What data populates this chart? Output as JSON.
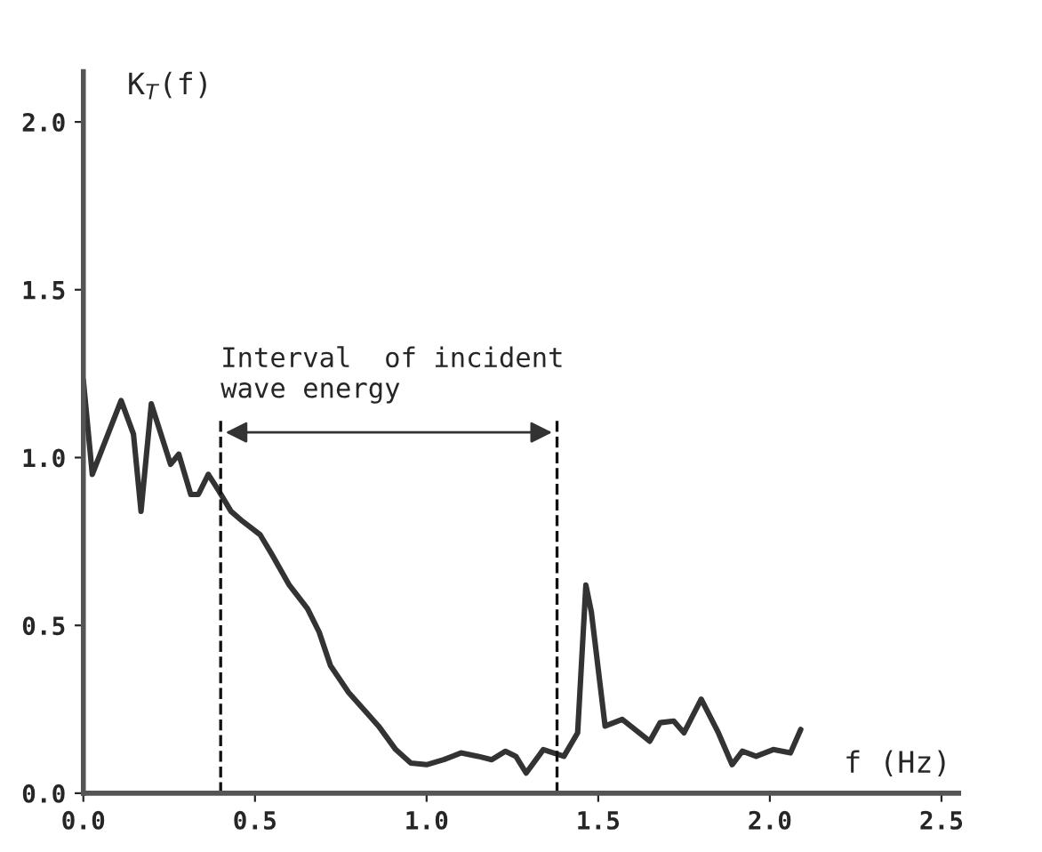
{
  "chart_data": {
    "type": "line",
    "xlabel": "f (Hz)",
    "ylabel": "K$_{T}$(f)",
    "annotations": [
      "Interval  of incident\nwave energy"
    ],
    "x": [
      0.0,
      0.026,
      0.11,
      0.146,
      0.168,
      0.198,
      0.254,
      0.278,
      0.313,
      0.335,
      0.364,
      0.395,
      0.43,
      0.464,
      0.515,
      0.55,
      0.6,
      0.653,
      0.687,
      0.72,
      0.773,
      0.825,
      0.86,
      0.91,
      0.954,
      1.0,
      1.05,
      1.1,
      1.15,
      1.19,
      1.23,
      1.26,
      1.29,
      1.34,
      1.4,
      1.44,
      1.464,
      1.48,
      1.52,
      1.57,
      1.65,
      1.68,
      1.72,
      1.75,
      1.8,
      1.85,
      1.89,
      1.92,
      1.96,
      2.01,
      2.06,
      2.09
    ],
    "series": [
      {
        "color": "#333333",
        "values": [
          1.23,
          0.95,
          1.17,
          1.07,
          0.84,
          1.16,
          0.98,
          1.01,
          0.89,
          0.89,
          0.95,
          0.9,
          0.84,
          0.81,
          0.77,
          0.71,
          0.62,
          0.55,
          0.48,
          0.38,
          0.3,
          0.24,
          0.2,
          0.13,
          0.09,
          0.085,
          0.1,
          0.12,
          0.11,
          0.1,
          0.125,
          0.11,
          0.06,
          0.13,
          0.11,
          0.18,
          0.62,
          0.54,
          0.2,
          0.22,
          0.155,
          0.21,
          0.215,
          0.18,
          0.28,
          0.18,
          0.085,
          0.125,
          0.11,
          0.13,
          0.12,
          0.19
        ]
      }
    ],
    "xlim": [
      0,
      2.55
    ],
    "ylim": [
      0,
      2.15
    ],
    "xticks": [
      {
        "value": 0,
        "label": "0.0"
      },
      0.5,
      {
        "value": 1,
        "label": "1.0"
      },
      1.5,
      {
        "value": 2,
        "label": "2.0"
      },
      2.5
    ],
    "yticks": [
      {
        "value": 0,
        "label": "0.0"
      },
      0.5,
      {
        "value": 1,
        "label": "1.0"
      },
      1.5,
      {
        "value": 2,
        "label": "2.0"
      }
    ],
    "ref_lines": [
      {
        "axis": "x",
        "value": 0.4,
        "color": "#111111",
        "line_style": "dashed"
      },
      {
        "axis": "x",
        "value": 1.38,
        "color": "#111111",
        "line_style": "dashed"
      }
    ],
    "grid": false,
    "legend": false,
    "marker": "none",
    "line_style": "solid"
  }
}
